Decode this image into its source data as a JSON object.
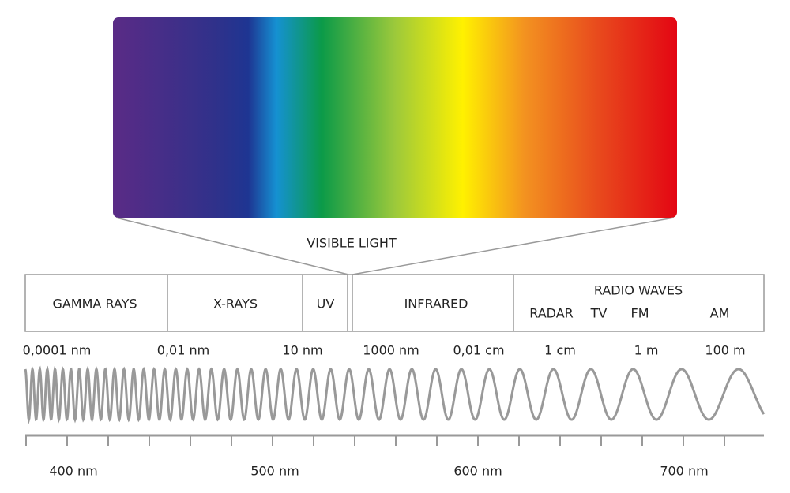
{
  "visible_label": "VISIBLE LIGHT",
  "bands": [
    "GAMMA RAYS",
    "X-RAYS",
    "UV",
    "INFRARED"
  ],
  "radio": {
    "title": "RADIO WAVES",
    "subbands": [
      "RADAR",
      "TV",
      "FM",
      "AM"
    ]
  },
  "wavelengths": [
    "0,0001 nm",
    "0,01 nm",
    "10 nm",
    "1000 nm",
    "0,01 cm",
    "1 cm",
    "1 m",
    "100 m"
  ],
  "visible_scale": [
    "400 nm",
    "500 nm",
    "600 nm",
    "700 nm"
  ]
}
